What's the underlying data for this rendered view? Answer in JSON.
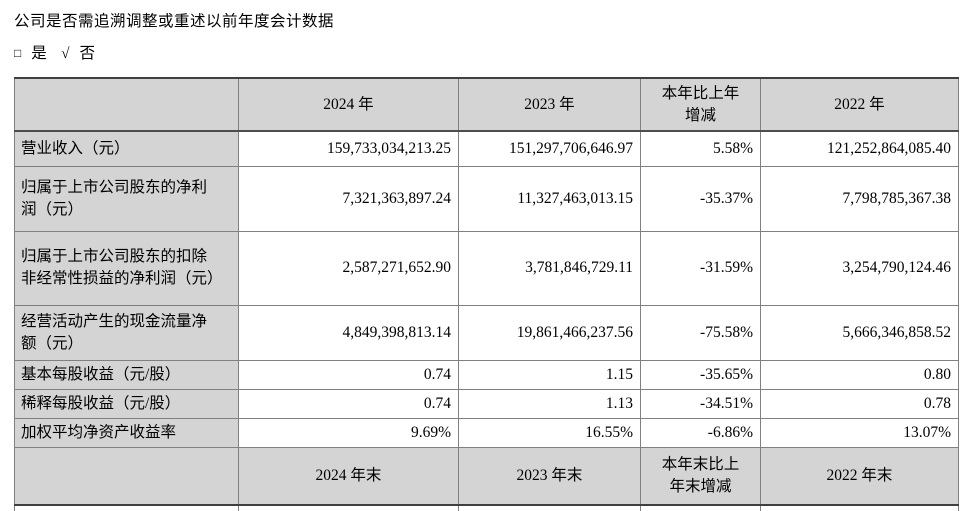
{
  "intro": {
    "question": "公司是否需追溯调整或重述以前年度会计数据",
    "options": {
      "unchecked_symbol": "□",
      "yes_label": "是",
      "checked_symbol": "√",
      "no_label": "否"
    }
  },
  "table": {
    "columns": [
      "",
      "2024 年",
      "2023 年",
      "本年比上年增减",
      "2022 年"
    ],
    "rows": [
      {
        "label": "营业收入（元）",
        "values": [
          "159,733,034,213.25",
          "151,297,706,646.97",
          "5.58%",
          "121,252,864,085.40"
        ]
      },
      {
        "label": "归属于上市公司股东的净利润（元）",
        "values": [
          "7,321,363,897.24",
          "11,327,463,013.15",
          "-35.37%",
          "7,798,785,367.38"
        ]
      },
      {
        "label": "归属于上市公司股东的扣除非经常性损益的净利润（元）",
        "values": [
          "2,587,271,652.90",
          "3,781,846,729.11",
          "-31.59%",
          "3,254,790,124.46"
        ]
      },
      {
        "label": "经营活动产生的现金流量净额（元）",
        "values": [
          "4,849,398,813.14",
          "19,861,466,237.56",
          "-75.58%",
          "5,666,346,858.52"
        ]
      },
      {
        "label": "基本每股收益（元/股）",
        "values": [
          "0.74",
          "1.15",
          "-35.65%",
          "0.80"
        ]
      },
      {
        "label": "稀释每股收益（元/股）",
        "values": [
          "0.74",
          "1.13",
          "-34.51%",
          "0.78"
        ]
      },
      {
        "label": "加权平均净资产收益率",
        "values": [
          "9.69%",
          "16.55%",
          "-6.86%",
          "13.07%"
        ]
      }
    ],
    "footer_columns": [
      "",
      "2024 年末",
      "2023 年末",
      "本年末比上年末增减",
      "2022 年末"
    ]
  }
}
